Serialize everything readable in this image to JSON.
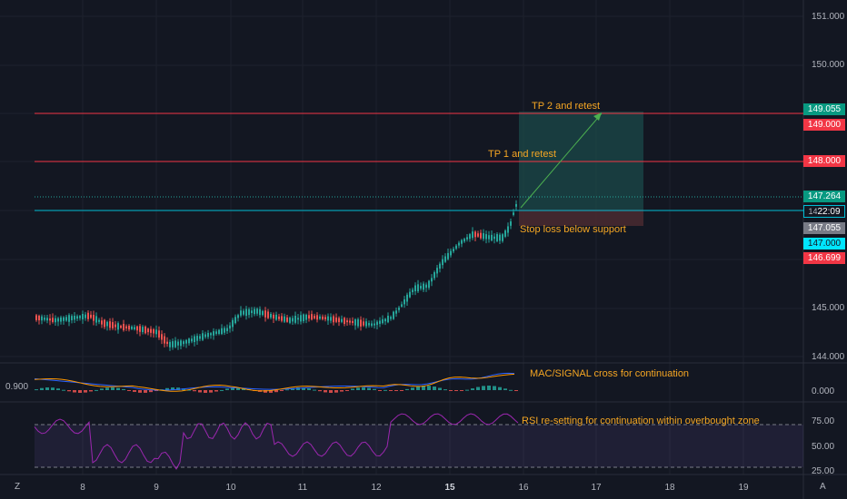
{
  "price_axis": {
    "ticks": [
      "151.000",
      "150.000",
      "145.000",
      "144.000"
    ]
  },
  "price_tags": {
    "tp2": {
      "label": "149.055",
      "color": "#089981"
    },
    "level_149": {
      "label": "149.000",
      "color": "#f23645"
    },
    "level_148": {
      "label": "148.000",
      "color": "#f23645"
    },
    "current": {
      "label": "147.264",
      "color": "#089981"
    },
    "countdown": {
      "label": "22:09",
      "prefix": "14",
      "color": "#131722",
      "border": "#00bcd4"
    },
    "entry": {
      "label": "147.055",
      "color": "#787b86"
    },
    "support": {
      "label": "147.000",
      "color": "#00e5ff"
    },
    "stop": {
      "label": "146.699",
      "color": "#f23645"
    }
  },
  "annotations": {
    "tp2": "TP 2 and retest",
    "tp1": "TP 1 and retest",
    "stop": "Stop loss below support",
    "macd": "MAC/SIGNAL cross for continuation",
    "rsi": "RSI re-setting for continuation within overbought zone"
  },
  "macd_panel": {
    "left_value": "0.900",
    "axis_label": "0.000"
  },
  "rsi_panel": {
    "ticks": [
      "75.00",
      "50.00",
      "25.00"
    ]
  },
  "time_axis": {
    "zone_marker": "Z",
    "auto_marker": "A",
    "dates": [
      {
        "label": "8",
        "bold": false
      },
      {
        "label": "9",
        "bold": false
      },
      {
        "label": "10",
        "bold": false
      },
      {
        "label": "11",
        "bold": false
      },
      {
        "label": "12",
        "bold": false
      },
      {
        "label": "15",
        "bold": true
      },
      {
        "label": "16",
        "bold": false
      },
      {
        "label": "17",
        "bold": false
      },
      {
        "label": "18",
        "bold": false
      },
      {
        "label": "19",
        "bold": false
      }
    ]
  },
  "colors": {
    "background": "#131722",
    "bull": "#26a69a",
    "bear": "#ef5350",
    "resistance": "#f23645",
    "support": "#00bcd4",
    "annotation": "#f5a623",
    "macd": "#2962ff",
    "signal": "#ff9800",
    "rsi": "#9c27b0"
  }
}
